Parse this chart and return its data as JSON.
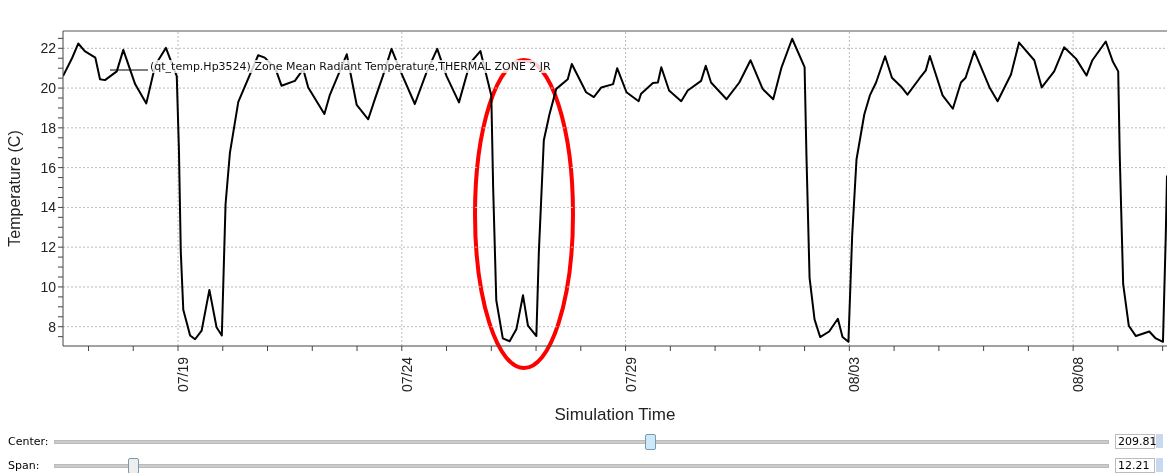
{
  "chart_data": {
    "type": "line",
    "xlabel": "Simulation Time",
    "ylabel": "Temperature (C)",
    "x": [
      "--07-16T10:20",
      "--07-16T15:10",
      "--07-16T18:30",
      "--07-16T22:00",
      "--07-17T03:40",
      "--07-17T06:10",
      "--07-17T08:50",
      "--07-17T15:10",
      "--07-17T18:40",
      "--07-18T01:00",
      "--07-18T07:00",
      "--07-18T11:50",
      "--07-18T17:30",
      "--07-18T23:20",
      "--07-19T00:30",
      "--07-19T01:30",
      "--07-19T02:50",
      "--07-19T06:30",
      "--07-19T09:10",
      "--07-19T12:40",
      "--07-19T16:50",
      "--07-19T20:40",
      "--07-19T23:30",
      "--07-20T01:30",
      "--07-20T03:50",
      "--07-20T08:20",
      "--07-20T19:00",
      "--07-20T22:30",
      "--07-21T04:10",
      "--07-21T07:30",
      "--07-21T14:40",
      "--07-21T19:10",
      "--07-21T21:50",
      "--07-22T06:30",
      "--07-22T09:20",
      "--07-22T18:30",
      "--07-22T23:50",
      "--07-23T06:00",
      "--07-23T09:40",
      "--07-23T13:50",
      "--07-23T18:30",
      "--07-23T23:00",
      "--07-24T07:00",
      "--07-24T13:10",
      "--07-24T19:00",
      "--07-25T00:00",
      "--07-25T06:40",
      "--07-25T12:30",
      "--07-25T18:10",
      "--07-26T00:00",
      "--07-26T01:00",
      "--07-26T02:40",
      "--07-26T06:10",
      "--07-26T09:50",
      "--07-26T13:30",
      "--07-26T17:00",
      "--07-26T19:40",
      "--07-27T00:10",
      "--07-27T01:30",
      "--07-27T04:10",
      "--07-27T07:10",
      "--07-27T10:50",
      "--07-27T17:00",
      "--07-27T19:10",
      "--07-28T02:50",
      "--07-28T07:00",
      "--07-28T11:00",
      "--07-28T17:20",
      "--07-28T19:30",
      "--07-29T00:30",
      "--07-29T07:00",
      "--07-29T08:20",
      "--07-29T14:40",
      "--07-29T17:20",
      "--07-29T19:10",
      "--07-29T23:20",
      "--07-30T05:50",
      "--07-30T09:20",
      "--07-30T16:30",
      "--07-30T19:00",
      "--07-30T21:50",
      "--07-31T06:10",
      "--07-31T13:00",
      "--07-31T19:00",
      "--08-01T01:30",
      "--08-01T07:10",
      "--08-01T11:30",
      "--08-01T17:20",
      "--08-02T00:00",
      "--08-02T01:00",
      "--08-02T02:40",
      "--08-02T05:20",
      "--08-02T08:20",
      "--08-02T13:10",
      "--08-02T17:50",
      "--08-02T20:20",
      "--08-02T23:30",
      "--08-03T01:30",
      "--08-03T03:50",
      "--08-03T08:00",
      "--08-03T11:00",
      "--08-03T14:20",
      "--08-03T19:10",
      "--08-03T22:50",
      "--08-04T03:40",
      "--08-04T07:10",
      "--08-04T13:30",
      "--08-04T17:00",
      "--08-04T19:10",
      "--08-05T02:00",
      "--08-05T07:30",
      "--08-05T11:50",
      "--08-05T14:20",
      "--08-05T19:00",
      "--08-06T03:10",
      "--08-06T07:30",
      "--08-06T14:40",
      "--08-06T19:00",
      "--08-07T03:10",
      "--08-07T07:10",
      "--08-07T13:50",
      "--08-07T19:10",
      "--08-08T01:30",
      "--08-08T07:10",
      "--08-08T10:20",
      "--08-08T17:30",
      "--08-08T21:20",
      "--08-09T00:10",
      "--08-09T01:00",
      "--08-09T02:50",
      "--08-09T05:50",
      "--08-09T09:40",
      "--08-09T16:50",
      "--08-09T20:20",
      "--08-10T00:10",
      "--08-10T01:40",
      "--08-10T02:20"
    ],
    "series": [
      {
        "name": "(qt_temp.Hp3524) Zone Mean Radiant Temperature,THERMAL ZONE 2 JR",
        "color": "#000000",
        "values": [
          20.6,
          21.5,
          22.24,
          21.86,
          21.53,
          20.44,
          20.4,
          20.84,
          21.92,
          20.2,
          19.23,
          21.16,
          22.02,
          20.6,
          16.9,
          11.76,
          8.85,
          7.56,
          7.37,
          7.8,
          9.85,
          7.97,
          7.56,
          14.16,
          16.74,
          19.31,
          21.65,
          21.53,
          21.0,
          20.12,
          20.36,
          20.95,
          20.03,
          18.7,
          19.63,
          21.7,
          19.15,
          18.43,
          19.47,
          20.6,
          21.97,
          20.92,
          19.2,
          20.76,
          21.97,
          20.6,
          19.28,
          21.24,
          21.86,
          19.63,
          14.97,
          9.33,
          7.41,
          7.27,
          7.89,
          9.58,
          8.05,
          7.53,
          11.75,
          17.38,
          18.67,
          19.96,
          20.44,
          21.21,
          19.79,
          19.55,
          20.03,
          20.2,
          21.0,
          19.79,
          19.34,
          19.72,
          20.25,
          20.28,
          21.05,
          19.88,
          19.34,
          19.88,
          20.36,
          21.12,
          20.28,
          19.44,
          20.28,
          21.4,
          19.96,
          19.44,
          21.0,
          22.48,
          21.05,
          16.58,
          10.46,
          8.37,
          7.48,
          7.76,
          8.4,
          7.48,
          7.24,
          12.55,
          16.41,
          18.67,
          19.63,
          20.28,
          21.6,
          20.52,
          20.08,
          19.67,
          20.47,
          20.89,
          21.61,
          19.63,
          18.96,
          20.28,
          20.52,
          21.86,
          20.03,
          19.34,
          20.68,
          22.29,
          21.4,
          20.03,
          20.84,
          22.05,
          21.48,
          20.63,
          21.4,
          22.34,
          21.32,
          20.84,
          16.58,
          10.14,
          8.05,
          7.53,
          7.76,
          7.41,
          7.24,
          12.55,
          15.6
        ]
      }
    ],
    "xlim": [
      "--07-16T10:20",
      "--08-10T02:20"
    ],
    "ylim": [
      7.03,
      22.87
    ],
    "xticks": [
      {
        "value": "--07-19",
        "label": "07/19"
      },
      {
        "value": "--07-24",
        "label": "07/24"
      },
      {
        "value": "--07-29",
        "label": "07/29"
      },
      {
        "value": "--08-03",
        "label": "08/03"
      },
      {
        "value": "--08-08",
        "label": "08/08"
      }
    ],
    "yticks": [
      8,
      10,
      12,
      14,
      16,
      18,
      20,
      22
    ],
    "grid": true,
    "legend": "top left",
    "marker": "none",
    "line_style": "solid",
    "annotations": [
      "Center:",
      "209.81",
      "Span:",
      "12.21"
    ]
  }
}
